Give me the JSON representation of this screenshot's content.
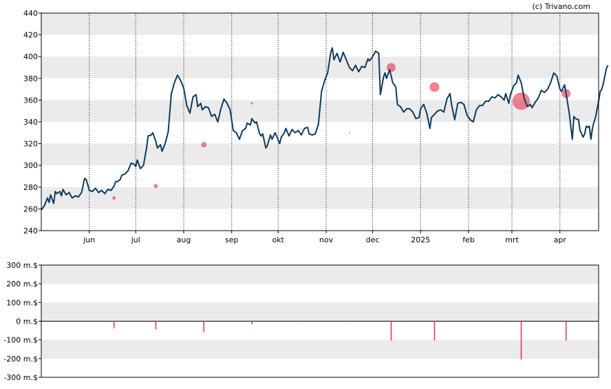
{
  "credit": "(c) Trivano.com",
  "colors": {
    "price_line": "#0d3a5c",
    "marker": "#e8384f",
    "band": "#ebebeb",
    "grid": "#000000"
  },
  "chart_data": [
    {
      "type": "line",
      "ylim": [
        240,
        440
      ],
      "y_ticks": [
        "240",
        "260",
        "280",
        "300",
        "320",
        "340",
        "360",
        "380",
        "400",
        "420",
        "440"
      ],
      "x_range": [
        0,
        360
      ],
      "x_ticks": [
        {
          "label": "jun",
          "x": 31
        },
        {
          "label": "jul",
          "x": 61
        },
        {
          "label": "aug",
          "x": 92
        },
        {
          "label": "sep",
          "x": 123
        },
        {
          "label": "okt",
          "x": 153
        },
        {
          "label": "nov",
          "x": 184
        },
        {
          "label": "dec",
          "x": 214
        },
        {
          "label": "2025",
          "x": 245
        },
        {
          "label": "feb",
          "x": 276
        },
        {
          "label": "mrt",
          "x": 304
        },
        {
          "label": "apr",
          "x": 335
        }
      ],
      "grid": "vertical dotted at month ticks, alternating horizontal bands",
      "series": [
        {
          "points": [
            [
              0,
              259
            ],
            [
              2,
              263
            ],
            [
              4,
              270
            ],
            [
              5,
              266
            ],
            [
              6,
              273
            ],
            [
              8,
              265
            ],
            [
              9,
              276
            ],
            [
              10,
              274
            ],
            [
              12,
              276
            ],
            [
              13,
              272
            ],
            [
              14,
              278
            ],
            [
              16,
              273
            ],
            [
              18,
              275
            ],
            [
              20,
              270
            ],
            [
              22,
              272
            ],
            [
              24,
              271
            ],
            [
              26,
              275
            ],
            [
              28,
              288
            ],
            [
              29,
              287
            ],
            [
              31,
              277
            ],
            [
              33,
              276
            ],
            [
              35,
              279
            ],
            [
              37,
              275
            ],
            [
              39,
              277
            ],
            [
              41,
              274
            ],
            [
              43,
              278
            ],
            [
              45,
              277
            ],
            [
              47,
              281
            ],
            [
              48,
              285
            ],
            [
              49,
              285
            ],
            [
              51,
              287
            ],
            [
              52,
              291
            ],
            [
              54,
              292
            ],
            [
              56,
              295
            ],
            [
              58,
              302
            ],
            [
              60,
              301
            ],
            [
              61,
              299
            ],
            [
              62,
              305
            ],
            [
              64,
              297
            ],
            [
              66,
              300
            ],
            [
              68,
              316
            ],
            [
              69,
              327
            ],
            [
              71,
              328
            ],
            [
              72,
              330
            ],
            [
              74,
              322
            ],
            [
              75,
              316
            ],
            [
              77,
              319
            ],
            [
              78,
              313
            ],
            [
              80,
              320
            ],
            [
              82,
              331
            ],
            [
              84,
              366
            ],
            [
              86,
              376
            ],
            [
              88,
              383
            ],
            [
              90,
              378
            ],
            [
              92,
              371
            ],
            [
              94,
              355
            ],
            [
              96,
              348
            ],
            [
              98,
              363
            ],
            [
              100,
              365
            ],
            [
              101,
              354
            ],
            [
              103,
              357
            ],
            [
              104,
              351
            ],
            [
              106,
              354
            ],
            [
              108,
              353
            ],
            [
              110,
              345
            ],
            [
              112,
              347
            ],
            [
              114,
              340
            ],
            [
              116,
              352
            ],
            [
              118,
              361
            ],
            [
              120,
              357
            ],
            [
              122,
              351
            ],
            [
              124,
              332
            ],
            [
              126,
              330
            ],
            [
              128,
              324
            ],
            [
              130,
              332
            ],
            [
              132,
              334
            ],
            [
              133,
              339
            ],
            [
              135,
              337
            ],
            [
              136,
              343
            ],
            [
              138,
              339
            ],
            [
              139,
              340
            ],
            [
              141,
              329
            ],
            [
              142,
              327
            ],
            [
              143,
              329
            ],
            [
              145,
              316
            ],
            [
              146,
              318
            ],
            [
              148,
              328
            ],
            [
              149,
              324
            ],
            [
              151,
              330
            ],
            [
              152,
              327
            ],
            [
              154,
              320
            ],
            [
              155,
              326
            ],
            [
              157,
              330
            ],
            [
              158,
              334
            ],
            [
              160,
              327
            ],
            [
              162,
              333
            ],
            [
              164,
              330
            ],
            [
              166,
              332
            ],
            [
              168,
              328
            ],
            [
              170,
              334
            ],
            [
              172,
              335
            ],
            [
              173,
              329
            ],
            [
              175,
              328
            ],
            [
              177,
              329
            ],
            [
              179,
              338
            ],
            [
              181,
              368
            ],
            [
              183,
              378
            ],
            [
              185,
              385
            ],
            [
              187,
              404
            ],
            [
              188,
              408
            ],
            [
              189,
              397
            ],
            [
              191,
              403
            ],
            [
              193,
              395
            ],
            [
              195,
              404
            ],
            [
              197,
              397
            ],
            [
              199,
              390
            ],
            [
              201,
              387
            ],
            [
              203,
              392
            ],
            [
              205,
              386
            ],
            [
              207,
              391
            ],
            [
              209,
              390
            ],
            [
              211,
              398
            ],
            [
              212,
              396
            ],
            [
              214,
              400
            ],
            [
              216,
              405
            ],
            [
              218,
              403
            ],
            [
              219,
              365
            ],
            [
              221,
              381
            ],
            [
              222,
              385
            ],
            [
              223,
              380
            ],
            [
              225,
              388
            ],
            [
              227,
              376
            ],
            [
              229,
              372
            ],
            [
              230,
              356
            ],
            [
              232,
              354
            ],
            [
              234,
              349
            ],
            [
              236,
              352
            ],
            [
              238,
              352
            ],
            [
              240,
              349
            ],
            [
              242,
              343
            ],
            [
              244,
              344
            ],
            [
              245,
              352
            ],
            [
              247,
              356
            ],
            [
              249,
              348
            ],
            [
              251,
              334
            ],
            [
              252,
              344
            ],
            [
              254,
              347
            ],
            [
              256,
              350
            ],
            [
              258,
              351
            ],
            [
              260,
              349
            ],
            [
              262,
              361
            ],
            [
              264,
              366
            ],
            [
              265,
              356
            ],
            [
              267,
              342
            ],
            [
              269,
              357
            ],
            [
              271,
              358
            ],
            [
              273,
              356
            ],
            [
              275,
              346
            ],
            [
              277,
              342
            ],
            [
              279,
              340
            ],
            [
              281,
              351
            ],
            [
              283,
              355
            ],
            [
              285,
              355
            ],
            [
              287,
              359
            ],
            [
              289,
              359
            ],
            [
              291,
              363
            ],
            [
              293,
              362
            ],
            [
              295,
              365
            ],
            [
              297,
              363
            ],
            [
              299,
              360
            ],
            [
              300,
              366
            ],
            [
              302,
              357
            ],
            [
              303,
              365
            ],
            [
              305,
              373
            ],
            [
              307,
              376
            ],
            [
              308,
              383
            ],
            [
              310,
              376
            ],
            [
              312,
              361
            ],
            [
              314,
              354
            ],
            [
              316,
              356
            ],
            [
              317,
              353
            ],
            [
              319,
              358
            ],
            [
              321,
              362
            ],
            [
              323,
              369
            ],
            [
              325,
              367
            ],
            [
              327,
              370
            ],
            [
              329,
              376
            ],
            [
              331,
              385
            ],
            [
              333,
              382
            ],
            [
              335,
              370
            ],
            [
              336,
              368
            ],
            [
              338,
              374
            ],
            [
              339,
              366
            ],
            [
              341,
              348
            ],
            [
              343,
              324
            ],
            [
              344,
              345
            ],
            [
              345,
              343
            ],
            [
              347,
              342
            ],
            [
              348,
              332
            ],
            [
              350,
              326
            ],
            [
              351,
              329
            ],
            [
              352,
              336
            ],
            [
              353,
              335
            ],
            [
              354,
              336
            ],
            [
              355,
              324
            ],
            [
              356,
              334
            ],
            [
              357,
              340
            ],
            [
              358,
              344
            ],
            [
              359,
              352
            ],
            [
              360,
              359
            ],
            [
              361,
              368
            ],
            [
              362,
              370
            ],
            [
              363,
              375
            ],
            [
              364,
              382
            ],
            [
              365,
              389
            ],
            [
              366,
              392
            ]
          ]
        }
      ],
      "markers": [
        {
          "x": 47,
          "y": 270,
          "r": 2
        },
        {
          "x": 74,
          "y": 281,
          "r": 2.5
        },
        {
          "x": 105,
          "y": 319,
          "r": 3.5
        },
        {
          "x": 136,
          "y": 357,
          "r": 1.2
        },
        {
          "x": 168,
          "y": 333,
          "r": 0.6
        },
        {
          "x": 199,
          "y": 330,
          "r": 0.6
        },
        {
          "x": 226,
          "y": 390,
          "r": 6
        },
        {
          "x": 254,
          "y": 372,
          "r": 6.5
        },
        {
          "x": 310,
          "y": 359,
          "r": 12
        },
        {
          "x": 339,
          "y": 366,
          "r": 6
        }
      ]
    },
    {
      "type": "bar",
      "ylim": [
        -300,
        300
      ],
      "y_ticks": [
        "-300 m.$",
        "-200 m.$",
        "-100 m.$",
        "0 m.$",
        "100 m.$",
        "200 m.$",
        "300 m.$"
      ],
      "x_range": [
        0,
        360
      ],
      "bars": [
        {
          "x": 47,
          "value": -38
        },
        {
          "x": 74,
          "value": -43
        },
        {
          "x": 105,
          "value": -58
        },
        {
          "x": 136,
          "value": -17
        },
        {
          "x": 168,
          "value": -4
        },
        {
          "x": 199,
          "value": -4
        },
        {
          "x": 226,
          "value": -103
        },
        {
          "x": 254,
          "value": -103
        },
        {
          "x": 310,
          "value": -205
        },
        {
          "x": 339,
          "value": -103
        }
      ]
    }
  ]
}
